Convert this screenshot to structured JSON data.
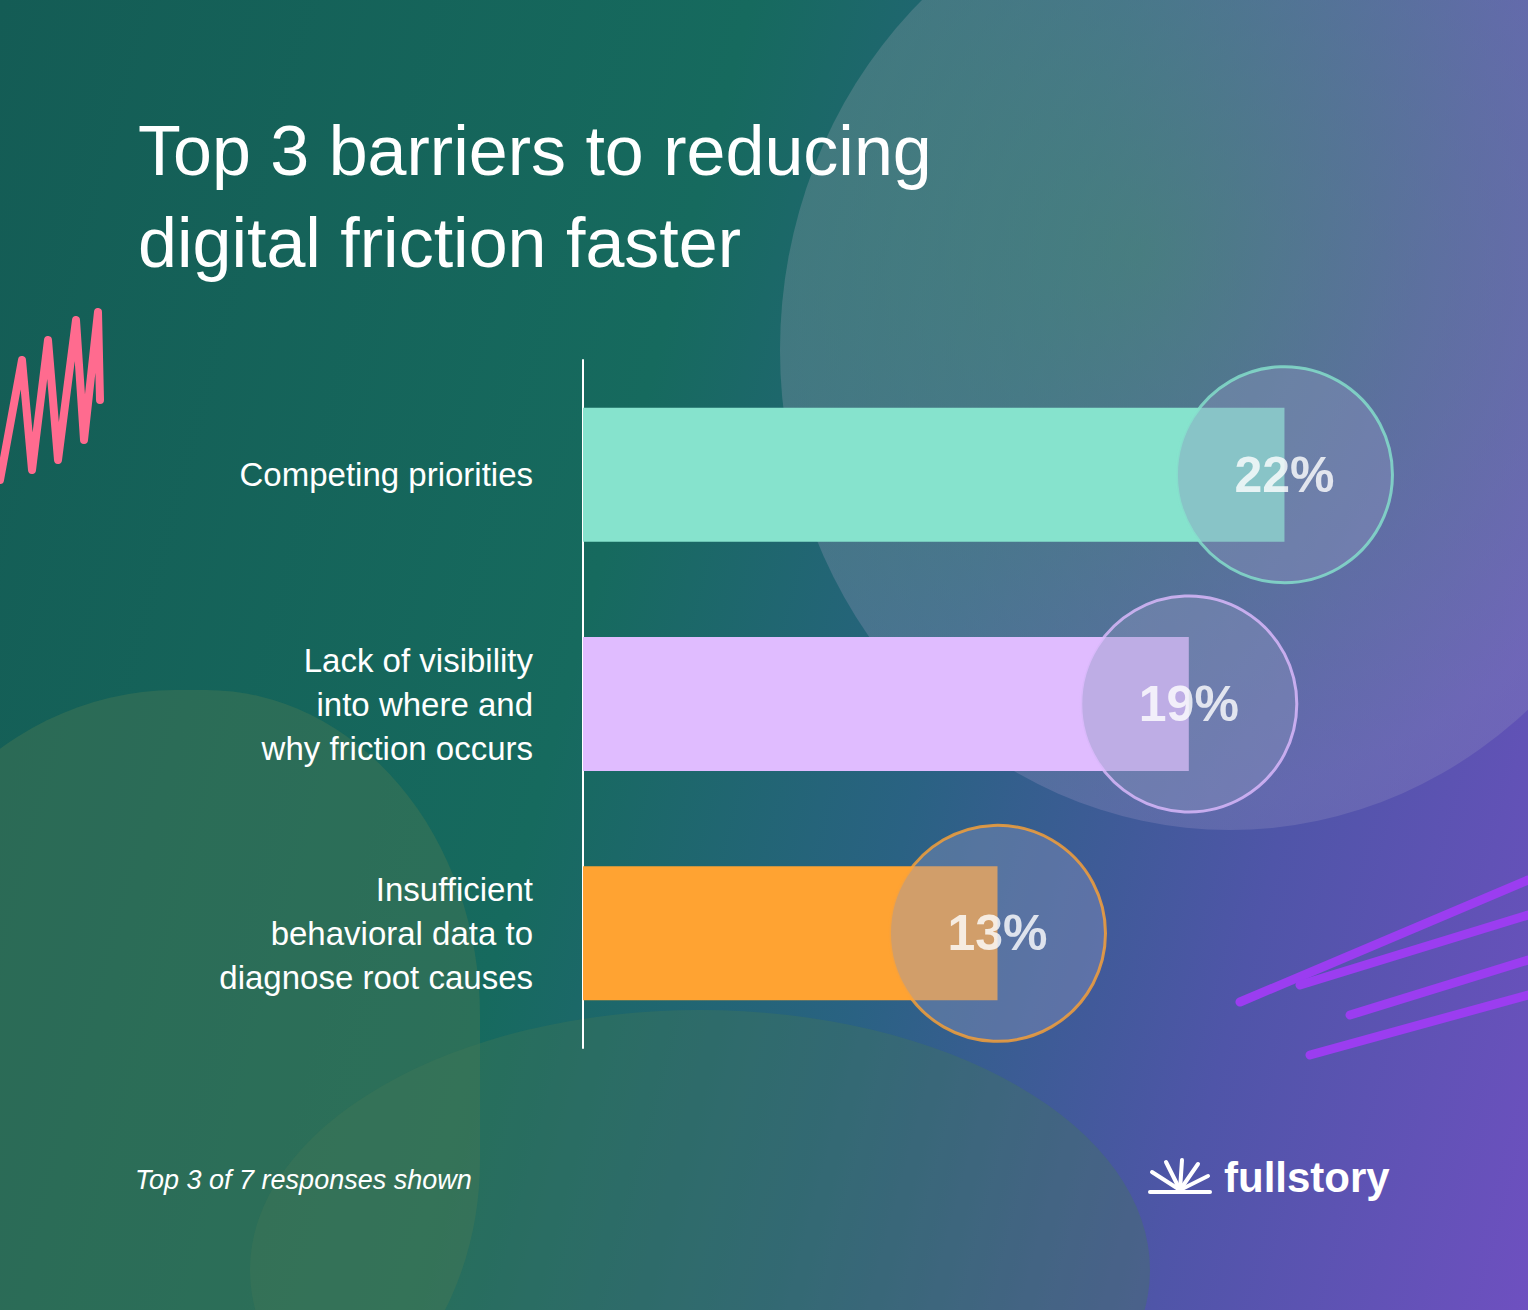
{
  "chart_data": {
    "type": "bar",
    "orientation": "horizontal",
    "title": "Top 3 barriers to reducing\ndigital friction faster",
    "categories": [
      "Competing priorities",
      "Lack of visibility\ninto where and\nwhy friction occurs",
      "Insufficient\nbehavioral data to\ndiagnose root causes"
    ],
    "values": [
      22,
      19,
      13
    ],
    "value_labels": [
      "22%",
      "19%",
      "13%"
    ],
    "colors": [
      "#86e3cd",
      "#e0bcff",
      "#ffa332"
    ],
    "data_labels": true,
    "xlim": [
      0,
      26
    ],
    "grid": false,
    "tick_labels": "y",
    "footnote": "Top 3 of 7 responses shown",
    "brand": "fullstory"
  }
}
